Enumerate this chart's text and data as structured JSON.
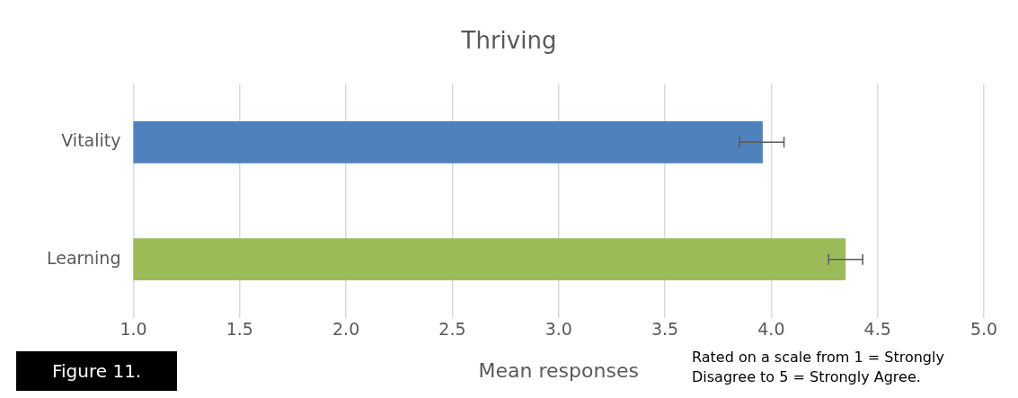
{
  "chart_data": {
    "type": "bar",
    "orientation": "horizontal",
    "title": "Thriving",
    "xlabel": "Mean responses",
    "categories": [
      "Vitality",
      "Learning"
    ],
    "values": [
      3.96,
      4.35
    ],
    "colors": [
      "#4f81bd",
      "#9bbb59"
    ],
    "errors": [
      [
        3.85,
        4.06
      ],
      [
        4.27,
        4.43
      ]
    ],
    "xlim": [
      1,
      5
    ],
    "xticks": [
      {
        "value": 1,
        "label": "1.0"
      },
      1.5,
      {
        "value": 2,
        "label": "2.0"
      },
      2.5,
      {
        "value": 3,
        "label": "3.0"
      },
      3.5,
      {
        "value": 4,
        "label": "4.0"
      },
      4.5,
      {
        "value": 5,
        "label": "5.0"
      }
    ],
    "grid": "x",
    "legend": false,
    "annotations": [
      "Figure 11.",
      "Rated on a scale from 1 = Strongly Disagree to 5 = Strongly Agree."
    ]
  }
}
